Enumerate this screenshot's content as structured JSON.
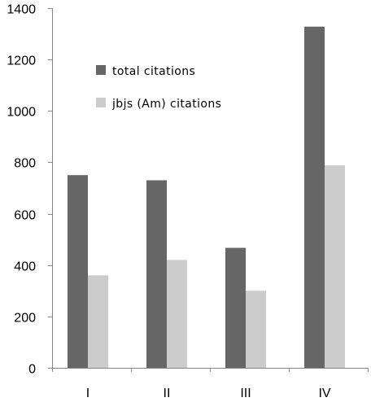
{
  "chart_data": {
    "type": "bar",
    "title": "",
    "xlabel": "",
    "ylabel": "",
    "categories": [
      "I",
      "II",
      "III",
      "IV"
    ],
    "series": [
      {
        "name": "total  citations",
        "values": [
          750,
          730,
          467,
          1328
        ],
        "color": "#666666"
      },
      {
        "name": "jbjs (Am) citations",
        "values": [
          360,
          420,
          300,
          788
        ],
        "color": "#cccccc"
      }
    ],
    "ylim": [
      0,
      1400
    ],
    "yticks": [
      0,
      200,
      400,
      600,
      800,
      1000,
      1200,
      1400
    ],
    "grid": false,
    "legend_position": "upper-left-inside"
  },
  "colors": {
    "axis": "#868686",
    "text": "#000000"
  }
}
